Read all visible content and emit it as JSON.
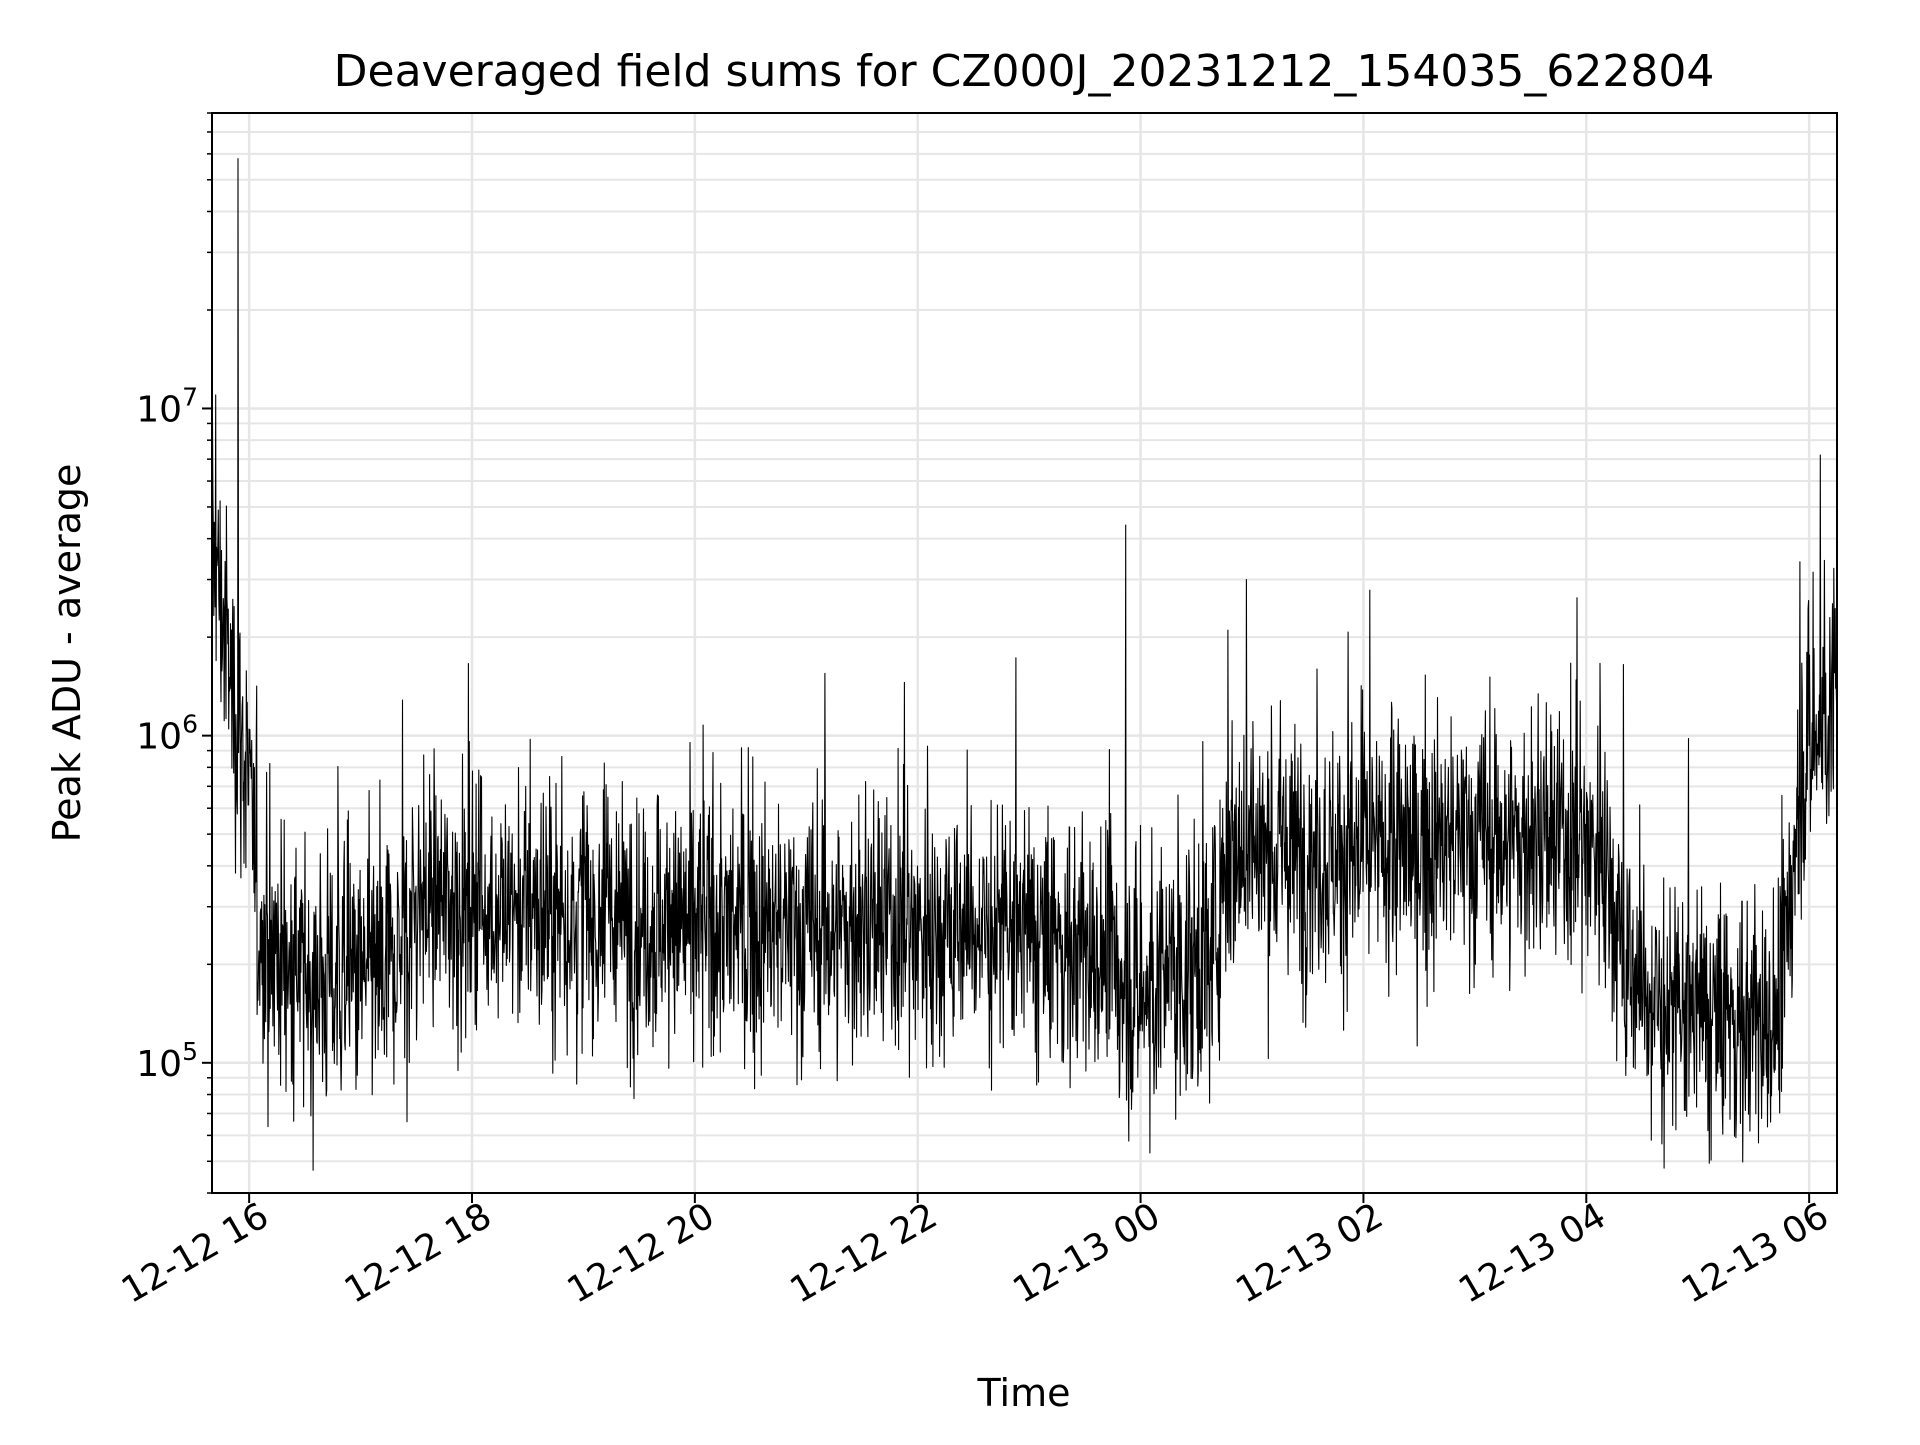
{
  "chart_data": {
    "type": "line",
    "title": "Deaveraged field sums for CZ000J_20231212_154035_622804",
    "xlabel": "Time",
    "ylabel": "Peak ADU - average",
    "yscale": "log",
    "ylim": [
      40000,
      80000000
    ],
    "xlim": [
      "2023-12-12 15:40",
      "2023-12-13 06:15"
    ],
    "grid": true,
    "line_color": "#000000",
    "grid_color": "#e6e6e6",
    "x_ticks": [
      {
        "label": "12-12 16",
        "time": "2023-12-12 16:00"
      },
      {
        "label": "12-12 18",
        "time": "2023-12-12 18:00"
      },
      {
        "label": "12-12 20",
        "time": "2023-12-12 20:00"
      },
      {
        "label": "12-12 22",
        "time": "2023-12-12 22:00"
      },
      {
        "label": "12-13 00",
        "time": "2023-12-13 00:00"
      },
      {
        "label": "12-13 02",
        "time": "2023-12-13 02:00"
      },
      {
        "label": "12-13 04",
        "time": "2023-12-13 04:00"
      },
      {
        "label": "12-13 06",
        "time": "2023-12-13 06:00"
      }
    ],
    "y_ticks": [
      {
        "base": "10",
        "exp": "5",
        "value": 100000
      },
      {
        "base": "10",
        "exp": "6",
        "value": 1000000
      },
      {
        "base": "10",
        "exp": "7",
        "value": 10000000
      }
    ],
    "series": [
      {
        "style": "dense noisy trace",
        "level_profile": [
          {
            "time": "2023-12-12 15:40",
            "value": 4000000
          },
          {
            "time": "2023-12-12 15:50",
            "value": 1500000
          },
          {
            "time": "2023-12-12 16:00",
            "value": 700000
          },
          {
            "time": "2023-12-12 16:05",
            "value": 250000
          },
          {
            "time": "2023-12-12 16:30",
            "value": 180000
          },
          {
            "time": "2023-12-12 17:15",
            "value": 180000
          },
          {
            "time": "2023-12-12 17:30",
            "value": 320000
          },
          {
            "time": "2023-12-12 19:00",
            "value": 280000
          },
          {
            "time": "2023-12-12 21:00",
            "value": 250000
          },
          {
            "time": "2023-12-12 22:30",
            "value": 260000
          },
          {
            "time": "2023-12-12 23:30",
            "value": 220000
          },
          {
            "time": "2023-12-13 00:00",
            "value": 160000
          },
          {
            "time": "2023-12-13 00:40",
            "value": 220000
          },
          {
            "time": "2023-12-13 00:45",
            "value": 450000
          },
          {
            "time": "2023-12-13 02:00",
            "value": 430000
          },
          {
            "time": "2023-12-13 03:00",
            "value": 480000
          },
          {
            "time": "2023-12-13 04:10",
            "value": 460000
          },
          {
            "time": "2023-12-13 04:20",
            "value": 200000
          },
          {
            "time": "2023-12-13 04:45",
            "value": 140000
          },
          {
            "time": "2023-12-13 05:45",
            "value": 130000
          },
          {
            "time": "2023-12-13 05:55",
            "value": 800000
          },
          {
            "time": "2023-12-13 06:15",
            "value": 1300000
          }
        ],
        "notable_peaks": [
          {
            "time": "2023-12-12 15:42",
            "value": 11000000
          },
          {
            "time": "2023-12-12 15:54",
            "value": 58000000
          },
          {
            "time": "2023-12-12 21:10",
            "value": 1550000
          },
          {
            "time": "2023-12-12 23:52",
            "value": 4400000
          },
          {
            "time": "2023-12-13 00:47",
            "value": 2100000
          },
          {
            "time": "2023-12-13 00:57",
            "value": 3000000
          },
          {
            "time": "2023-12-13 04:20",
            "value": 1650000
          },
          {
            "time": "2023-12-13 05:55",
            "value": 3400000
          },
          {
            "time": "2023-12-13 06:06",
            "value": 7200000
          }
        ],
        "notable_dips": [
          {
            "time": "2023-12-13 00:05",
            "value": 53000
          },
          {
            "time": "2023-12-13 04:35",
            "value": 58000
          },
          {
            "time": "2023-12-12 17:25",
            "value": 66000
          }
        ]
      }
    ]
  }
}
